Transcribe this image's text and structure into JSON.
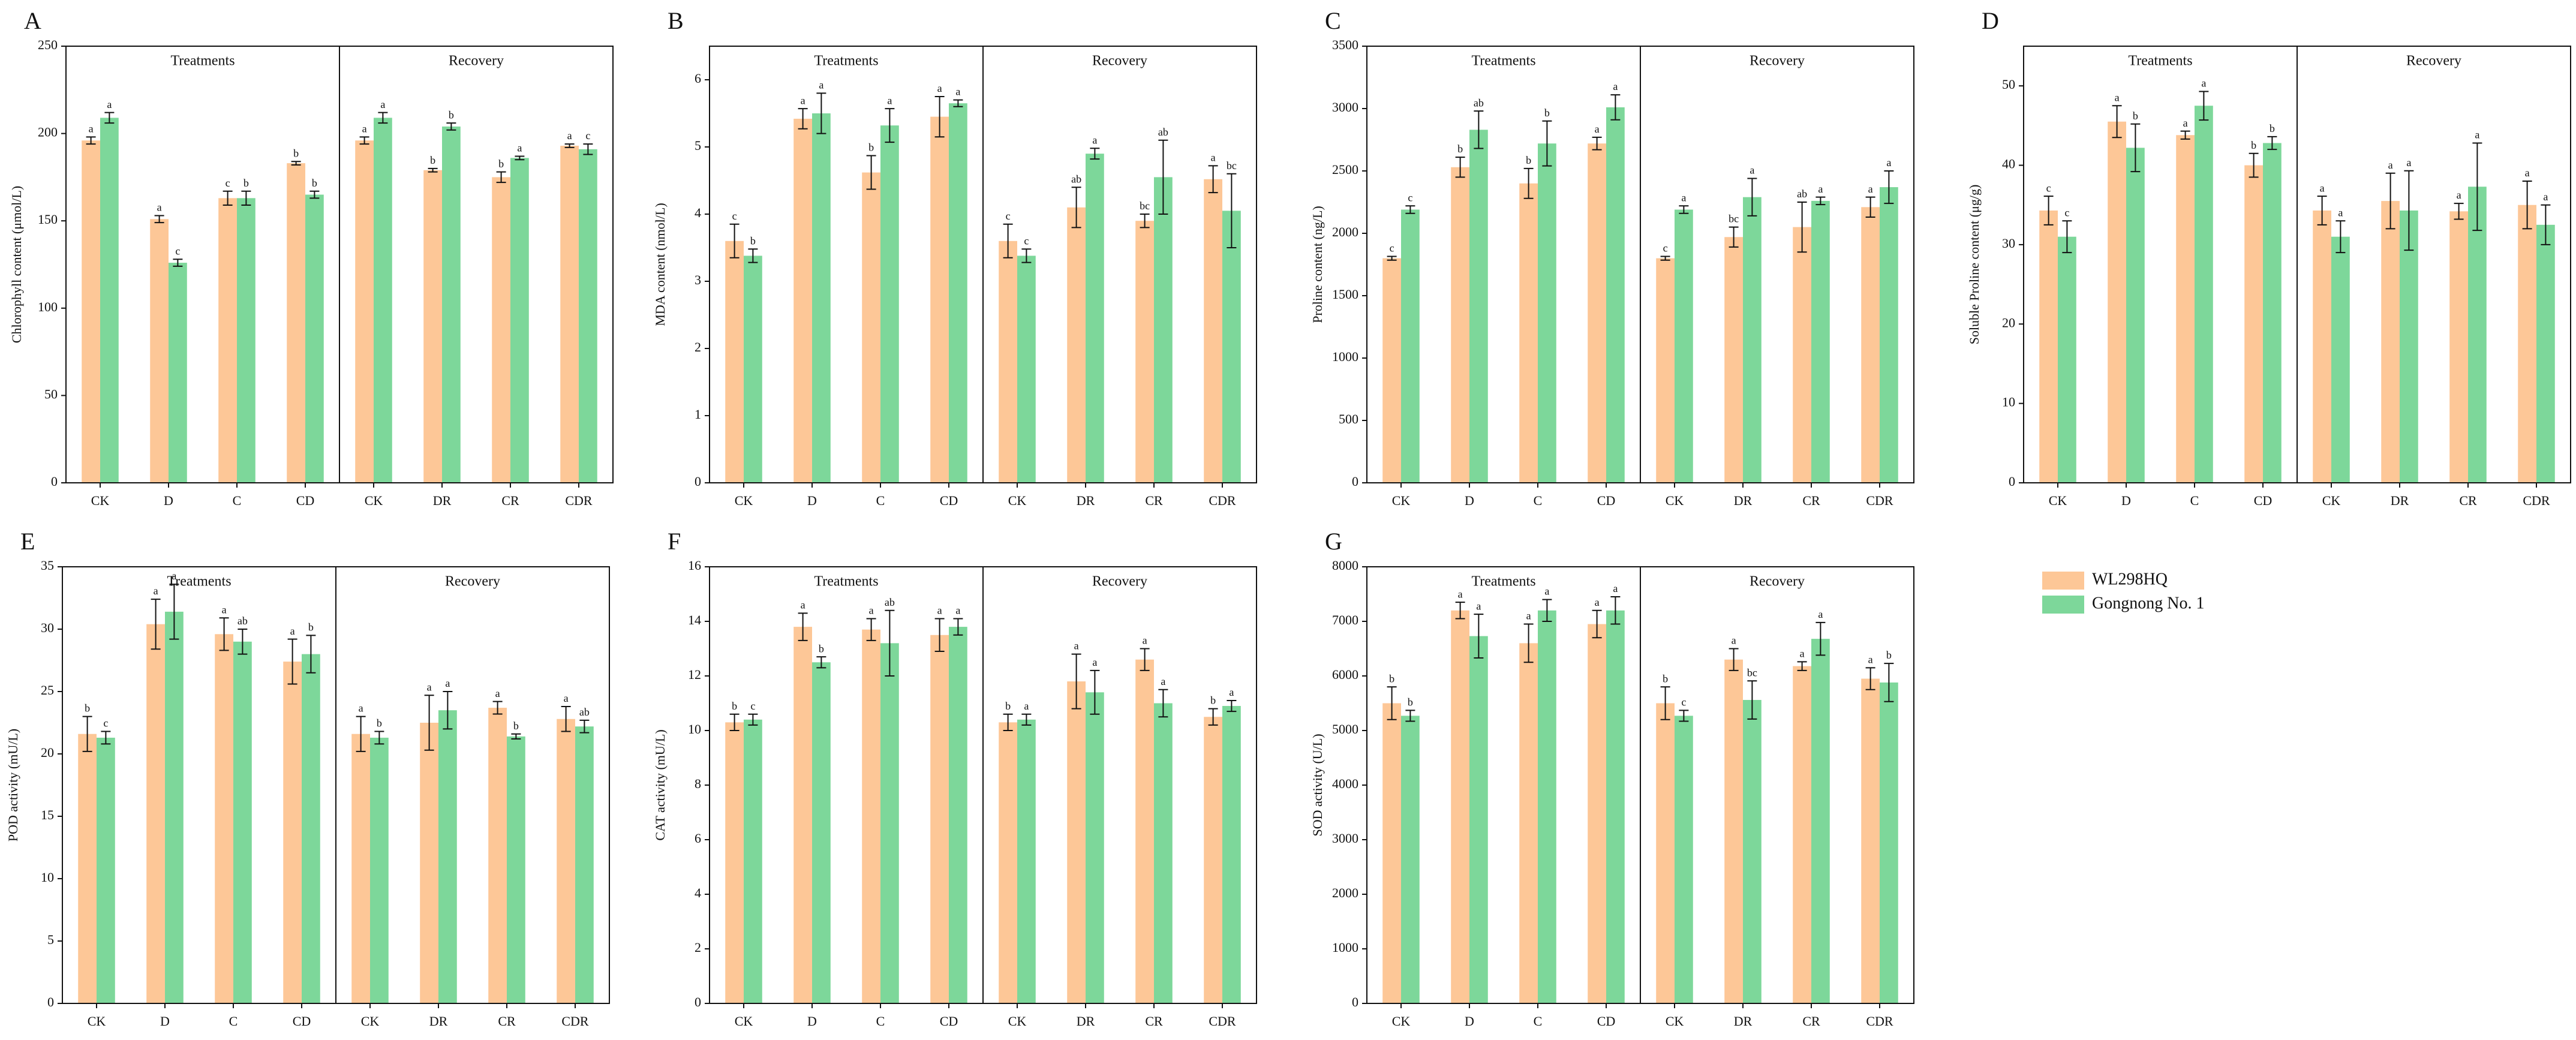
{
  "legend": [
    {
      "name": "WL298HQ",
      "color": "#fdc797"
    },
    {
      "name": "Gongnong No. 1",
      "color": "#7dd79a"
    }
  ],
  "chart_data": [
    {
      "type": "bar",
      "panel": "A",
      "ylabel": "Chlorophyll content (μmol/L)",
      "sections": [
        "Treatments",
        "Recovery"
      ],
      "categories": [
        "CK",
        "D",
        "C",
        "CD",
        "CK",
        "DR",
        "CR",
        "CDR"
      ],
      "ylim": [
        0,
        250
      ],
      "yticks": [
        0,
        50,
        100,
        150,
        200,
        250
      ],
      "series": [
        {
          "values": [
            196,
            151,
            163,
            183,
            196,
            179,
            175,
            193
          ],
          "errors": [
            2,
            2,
            4,
            1,
            2,
            1,
            3,
            1
          ],
          "letters": [
            "a",
            "a",
            "c",
            "b",
            "a",
            "b",
            "b",
            "a"
          ]
        },
        {
          "values": [
            209,
            126,
            163,
            165,
            209,
            204,
            186,
            191
          ],
          "errors": [
            3,
            2,
            4,
            2,
            3,
            2,
            1,
            3
          ],
          "letters": [
            "a",
            "c",
            "b",
            "b",
            "a",
            "b",
            "a",
            "c"
          ]
        }
      ]
    },
    {
      "type": "bar",
      "panel": "B",
      "ylabel": "MDA content (nmol/L)",
      "sections": [
        "Treatments",
        "Recovery"
      ],
      "categories": [
        "CK",
        "D",
        "C",
        "CD",
        "CK",
        "DR",
        "CR",
        "CDR"
      ],
      "ylim": [
        0,
        6.5
      ],
      "yticks": [
        0,
        1,
        2,
        3,
        4,
        5,
        6
      ],
      "series": [
        {
          "values": [
            3.6,
            5.42,
            4.62,
            5.45,
            3.6,
            4.1,
            3.9,
            4.52
          ],
          "errors": [
            0.25,
            0.15,
            0.25,
            0.3,
            0.25,
            0.3,
            0.1,
            0.2
          ],
          "letters": [
            "c",
            "a",
            "b",
            "a",
            "c",
            "ab",
            "bc",
            "a"
          ]
        },
        {
          "values": [
            3.38,
            5.5,
            5.32,
            5.65,
            3.38,
            4.9,
            4.55,
            4.05
          ],
          "errors": [
            0.1,
            0.3,
            0.25,
            0.05,
            0.1,
            0.08,
            0.55,
            0.55
          ],
          "letters": [
            "b",
            "a",
            "a",
            "a",
            "c",
            "a",
            "ab",
            "bc"
          ]
        }
      ]
    },
    {
      "type": "bar",
      "panel": "C",
      "ylabel": "Proline content (ng/L)",
      "sections": [
        "Treatments",
        "Recovery"
      ],
      "categories": [
        "CK",
        "D",
        "C",
        "CD",
        "CK",
        "DR",
        "CR",
        "CDR"
      ],
      "ylim": [
        0,
        3500
      ],
      "yticks": [
        0,
        500,
        1000,
        1500,
        2000,
        2500,
        3000,
        3500
      ],
      "series": [
        {
          "values": [
            1800,
            2530,
            2400,
            2720,
            1800,
            1970,
            2050,
            2210
          ],
          "errors": [
            15,
            80,
            120,
            50,
            15,
            80,
            200,
            80
          ],
          "letters": [
            "c",
            "b",
            "b",
            "a",
            "c",
            "bc",
            "ab",
            "a"
          ]
        },
        {
          "values": [
            2190,
            2830,
            2720,
            3010,
            2190,
            2290,
            2260,
            2370
          ],
          "errors": [
            30,
            150,
            180,
            100,
            30,
            150,
            30,
            130
          ],
          "letters": [
            "c",
            "ab",
            "b",
            "a",
            "a",
            "a",
            "a",
            "a"
          ]
        }
      ]
    },
    {
      "type": "bar",
      "panel": "D",
      "ylabel": "Soluble Proline content (μg/g)",
      "sections": [
        "Treatments",
        "Recovery"
      ],
      "categories": [
        "CK",
        "D",
        "C",
        "CD",
        "CK",
        "DR",
        "CR",
        "CDR"
      ],
      "ylim": [
        0,
        55
      ],
      "yticks": [
        0,
        10,
        20,
        30,
        40,
        50
      ],
      "series": [
        {
          "values": [
            34.3,
            45.5,
            43.8,
            40,
            34.3,
            35.5,
            34.2,
            35
          ],
          "errors": [
            1.8,
            2,
            0.5,
            1.5,
            1.8,
            3.5,
            1,
            3
          ],
          "letters": [
            "c",
            "a",
            "a",
            "b",
            "a",
            "a",
            "a",
            "a"
          ]
        },
        {
          "values": [
            31,
            42.2,
            47.5,
            42.8,
            31,
            34.3,
            37.3,
            32.5
          ],
          "errors": [
            2,
            3,
            1.8,
            0.8,
            2,
            5,
            5.5,
            2.5
          ],
          "letters": [
            "c",
            "b",
            "a",
            "b",
            "a",
            "a",
            "a",
            "a"
          ]
        }
      ]
    },
    {
      "type": "bar",
      "panel": "E",
      "ylabel": "POD activity (mU/L)",
      "sections": [
        "Treatments",
        "Recovery"
      ],
      "categories": [
        "CK",
        "D",
        "C",
        "CD",
        "CK",
        "DR",
        "CR",
        "CDR"
      ],
      "ylim": [
        0,
        35
      ],
      "yticks": [
        0,
        5,
        10,
        15,
        20,
        25,
        30,
        35
      ],
      "series": [
        {
          "values": [
            21.6,
            30.4,
            29.6,
            27.4,
            21.6,
            22.5,
            23.7,
            22.8
          ],
          "errors": [
            1.4,
            2,
            1.3,
            1.8,
            1.4,
            2.2,
            0.5,
            1
          ],
          "letters": [
            "b",
            "a",
            "a",
            "a",
            "a",
            "a",
            "a",
            "a"
          ]
        },
        {
          "values": [
            21.3,
            31.4,
            29,
            28,
            21.3,
            23.5,
            21.4,
            22.2
          ],
          "errors": [
            0.5,
            2.2,
            1,
            1.5,
            0.5,
            1.5,
            0.2,
            0.5
          ],
          "letters": [
            "c",
            "a",
            "ab",
            "b",
            "b",
            "a",
            "b",
            "ab"
          ]
        }
      ]
    },
    {
      "type": "bar",
      "panel": "F",
      "ylabel": "CAT activity (mU/L)",
      "sections": [
        "Treatments",
        "Recovery"
      ],
      "categories": [
        "CK",
        "D",
        "C",
        "CD",
        "CK",
        "DR",
        "CR",
        "CDR"
      ],
      "ylim": [
        0,
        16
      ],
      "yticks": [
        0,
        2,
        4,
        6,
        8,
        10,
        12,
        14,
        16
      ],
      "series": [
        {
          "values": [
            10.3,
            13.8,
            13.7,
            13.5,
            10.3,
            11.8,
            12.6,
            10.5
          ],
          "errors": [
            0.3,
            0.5,
            0.4,
            0.6,
            0.3,
            1,
            0.4,
            0.3
          ],
          "letters": [
            "b",
            "a",
            "a",
            "a",
            "b",
            "a",
            "a",
            "b"
          ]
        },
        {
          "values": [
            10.4,
            12.5,
            13.2,
            13.8,
            10.4,
            11.4,
            11,
            10.9
          ],
          "errors": [
            0.2,
            0.2,
            1.2,
            0.3,
            0.2,
            0.8,
            0.5,
            0.2
          ],
          "letters": [
            "c",
            "b",
            "ab",
            "a",
            "a",
            "a",
            "a",
            "a"
          ]
        }
      ]
    },
    {
      "type": "bar",
      "panel": "G",
      "ylabel": "SOD activity (U/L)",
      "sections": [
        "Treatments",
        "Recovery"
      ],
      "categories": [
        "CK",
        "D",
        "C",
        "CD",
        "CK",
        "DR",
        "CR",
        "CDR"
      ],
      "ylim": [
        0,
        8000
      ],
      "yticks": [
        0,
        1000,
        2000,
        3000,
        4000,
        5000,
        6000,
        7000,
        8000
      ],
      "series": [
        {
          "values": [
            5500,
            7200,
            6600,
            6950,
            5500,
            6300,
            6180,
            5950
          ],
          "errors": [
            300,
            150,
            350,
            250,
            300,
            200,
            80,
            200
          ],
          "letters": [
            "b",
            "a",
            "a",
            "a",
            "b",
            "a",
            "a",
            "a"
          ]
        },
        {
          "values": [
            5270,
            6730,
            7200,
            7200,
            5270,
            5560,
            6680,
            5880
          ],
          "errors": [
            100,
            400,
            200,
            250,
            100,
            350,
            300,
            350
          ],
          "letters": [
            "b",
            "a",
            "a",
            "a",
            "c",
            "bc",
            "a",
            "b"
          ]
        }
      ]
    }
  ]
}
